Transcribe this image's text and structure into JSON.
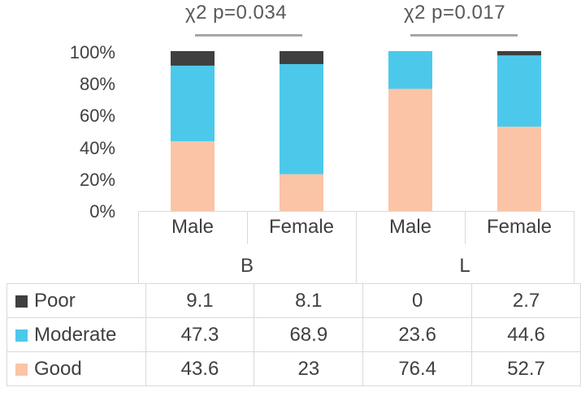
{
  "chart_data": {
    "type": "bar",
    "stacked": true,
    "percent": true,
    "groups": [
      {
        "label": "B",
        "test_label": "χ2 p=0.034",
        "categories": [
          "Male",
          "Female"
        ]
      },
      {
        "label": "L",
        "test_label": "χ2 p=0.017",
        "categories": [
          "Male",
          "Female"
        ]
      }
    ],
    "y_ticks": [
      "0%",
      "20%",
      "40%",
      "60%",
      "80%",
      "100%"
    ],
    "ylim": [
      0,
      100
    ],
    "series": [
      {
        "name": "Poor",
        "color": "#3f3f3f",
        "values": [
          9.1,
          8.1,
          0,
          2.7
        ],
        "labels": [
          "9.1",
          "8.1",
          "0",
          "2.7"
        ]
      },
      {
        "name": "Moderate",
        "color": "#4cc9ea",
        "values": [
          47.3,
          68.9,
          23.6,
          44.6
        ],
        "labels": [
          "47.3",
          "68.9",
          "23.6",
          "44.6"
        ]
      },
      {
        "name": "Good",
        "color": "#fbc4a6",
        "values": [
          43.6,
          23,
          76.4,
          52.7
        ],
        "labels": [
          "43.6",
          "23",
          "76.4",
          "52.7"
        ]
      }
    ],
    "stack_order": [
      "Good",
      "Moderate",
      "Poor"
    ]
  }
}
